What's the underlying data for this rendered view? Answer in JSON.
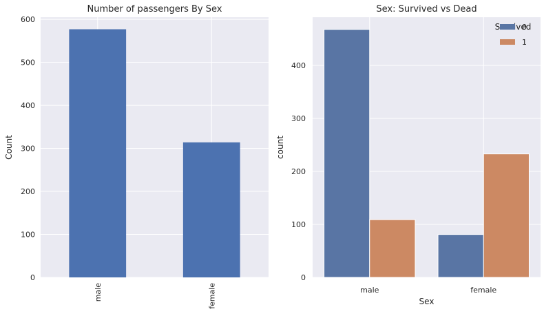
{
  "chart_data": [
    {
      "type": "bar",
      "title": "Number of passengers By Sex",
      "xlabel": "",
      "ylabel": "Count",
      "categories": [
        "male",
        "female"
      ],
      "values": [
        577,
        314
      ],
      "ylim": [
        0,
        605
      ],
      "yticks": [
        0,
        100,
        200,
        300,
        400,
        500,
        600
      ],
      "tick_rotation": "vertical",
      "color": "#4c72b0",
      "grid": true
    },
    {
      "type": "bar",
      "title": "Sex: Survived vs Dead",
      "xlabel": "Sex",
      "ylabel": "count",
      "categories": [
        "male",
        "female"
      ],
      "series": [
        {
          "name": "0",
          "values": [
            468,
            81
          ],
          "color": "#5975a4"
        },
        {
          "name": "1",
          "values": [
            109,
            233
          ],
          "color": "#cc8963"
        }
      ],
      "ylim": [
        0,
        491
      ],
      "yticks": [
        0,
        100,
        200,
        300,
        400
      ],
      "legend": {
        "title": "Survived",
        "placement": "top-right"
      },
      "grid": true
    }
  ]
}
